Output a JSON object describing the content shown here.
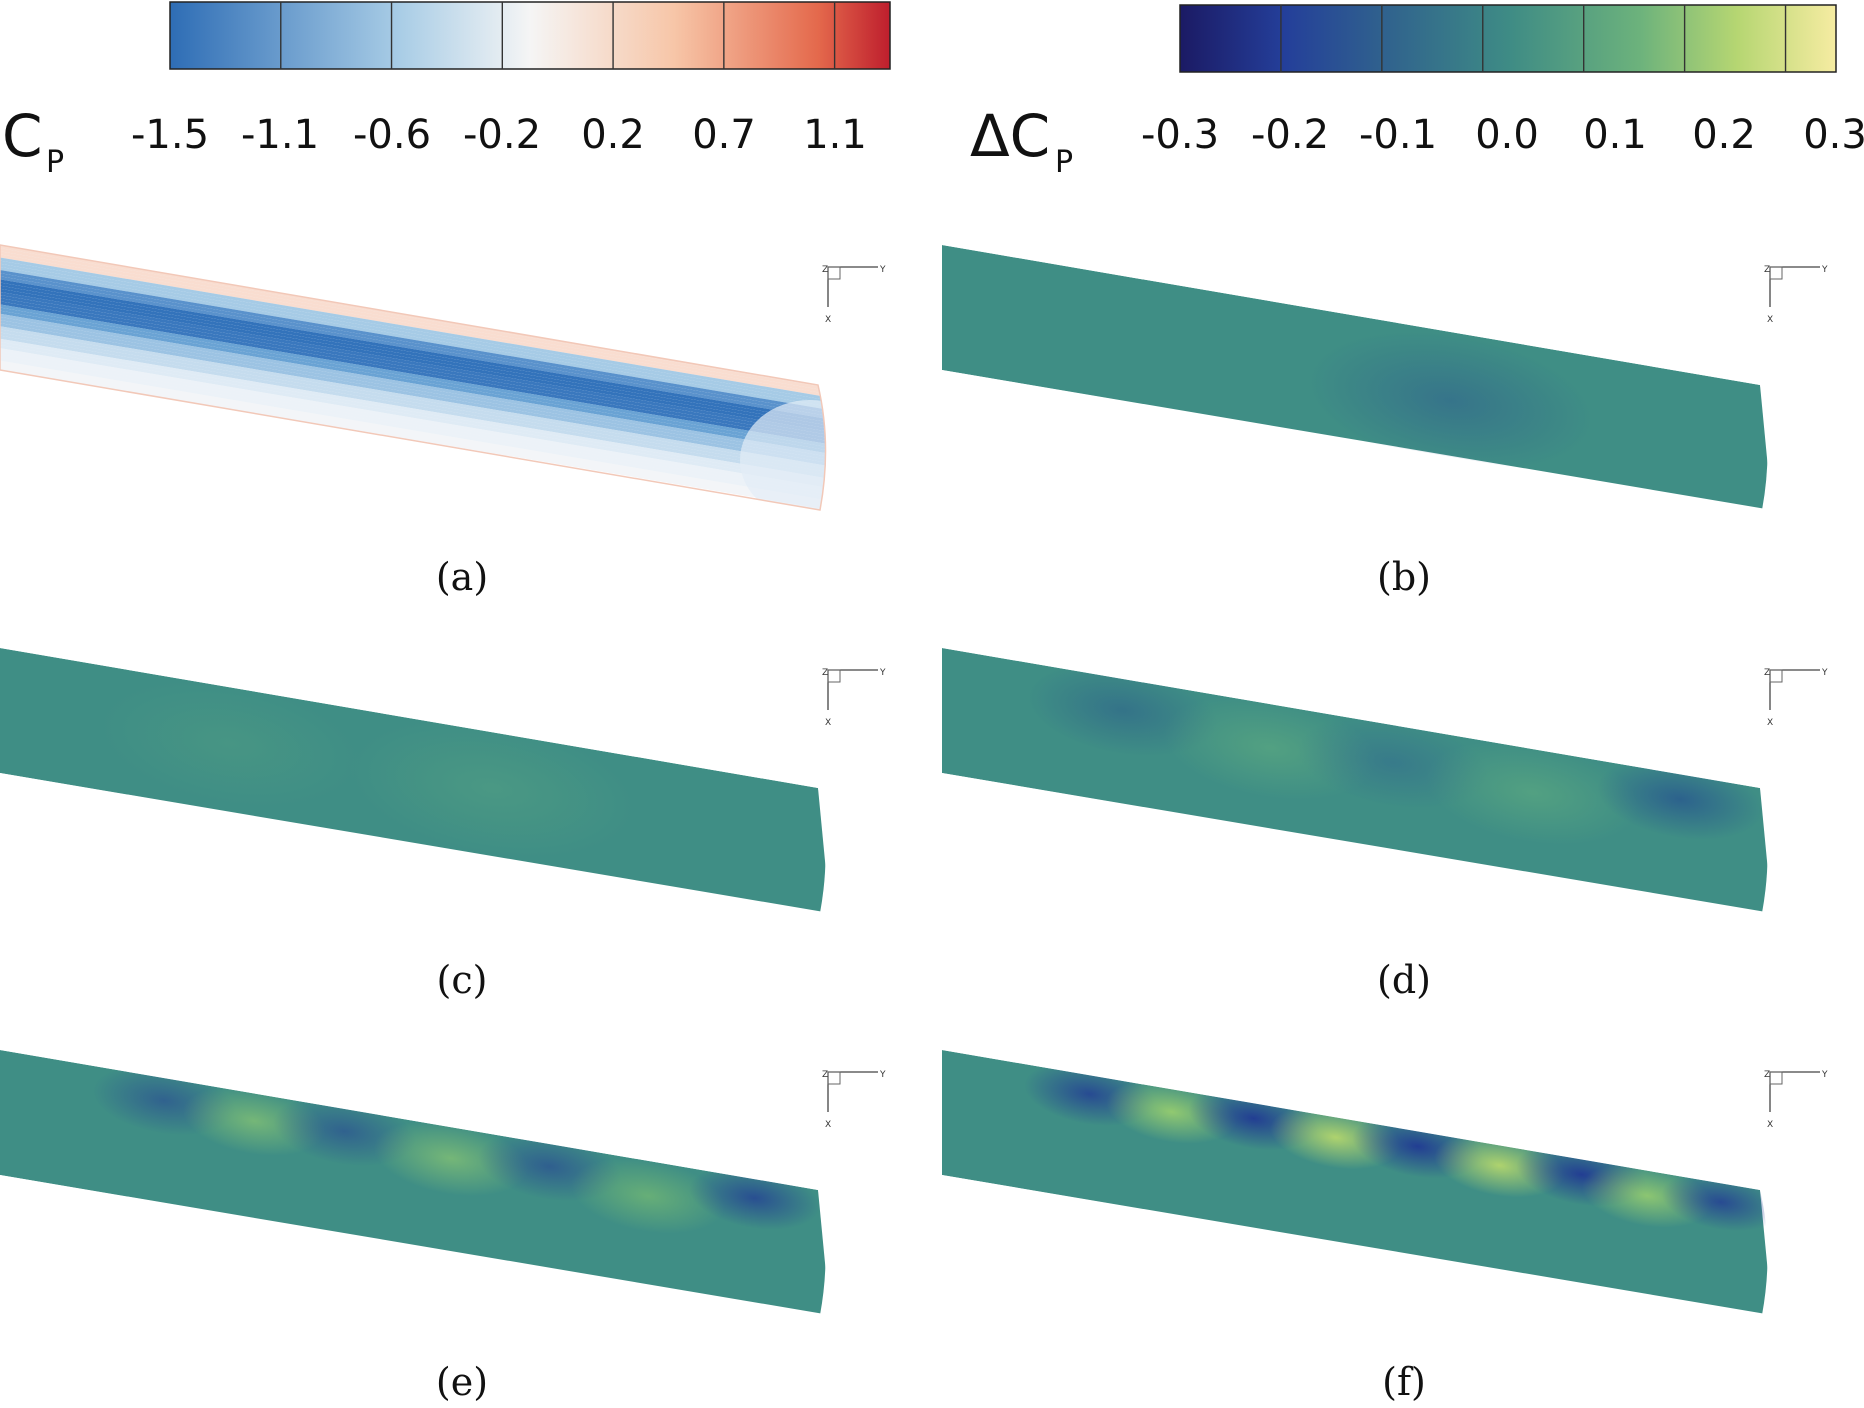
{
  "colorbars": [
    {
      "symbol": "C",
      "subscript": "P",
      "ticks": [
        "-1.5",
        "-1.1",
        "-0.6",
        "-0.2",
        "0.2",
        "0.7",
        "1.1"
      ],
      "colors": [
        "#2f6fb8",
        "#f4f4f4",
        "#c41e2d"
      ]
    },
    {
      "symbol": "ΔC",
      "subscript": "P",
      "ticks": [
        "-0.3",
        "-0.2",
        "-0.1",
        "0.0",
        "0.1",
        "0.2",
        "0.3"
      ],
      "colors": [
        "#1c1c6a",
        "#3f8e8e",
        "#f5ea9b"
      ]
    }
  ],
  "axis_triad": {
    "z": "Z",
    "y": "Y",
    "x": "X"
  },
  "panels": [
    {
      "label": "(a)",
      "field": "CP"
    },
    {
      "label": "(b)",
      "field": "dCP"
    },
    {
      "label": "(c)",
      "field": "dCP"
    },
    {
      "label": "(d)",
      "field": "dCP"
    },
    {
      "label": "(e)",
      "field": "dCP"
    },
    {
      "label": "(f)",
      "field": "dCP"
    }
  ]
}
